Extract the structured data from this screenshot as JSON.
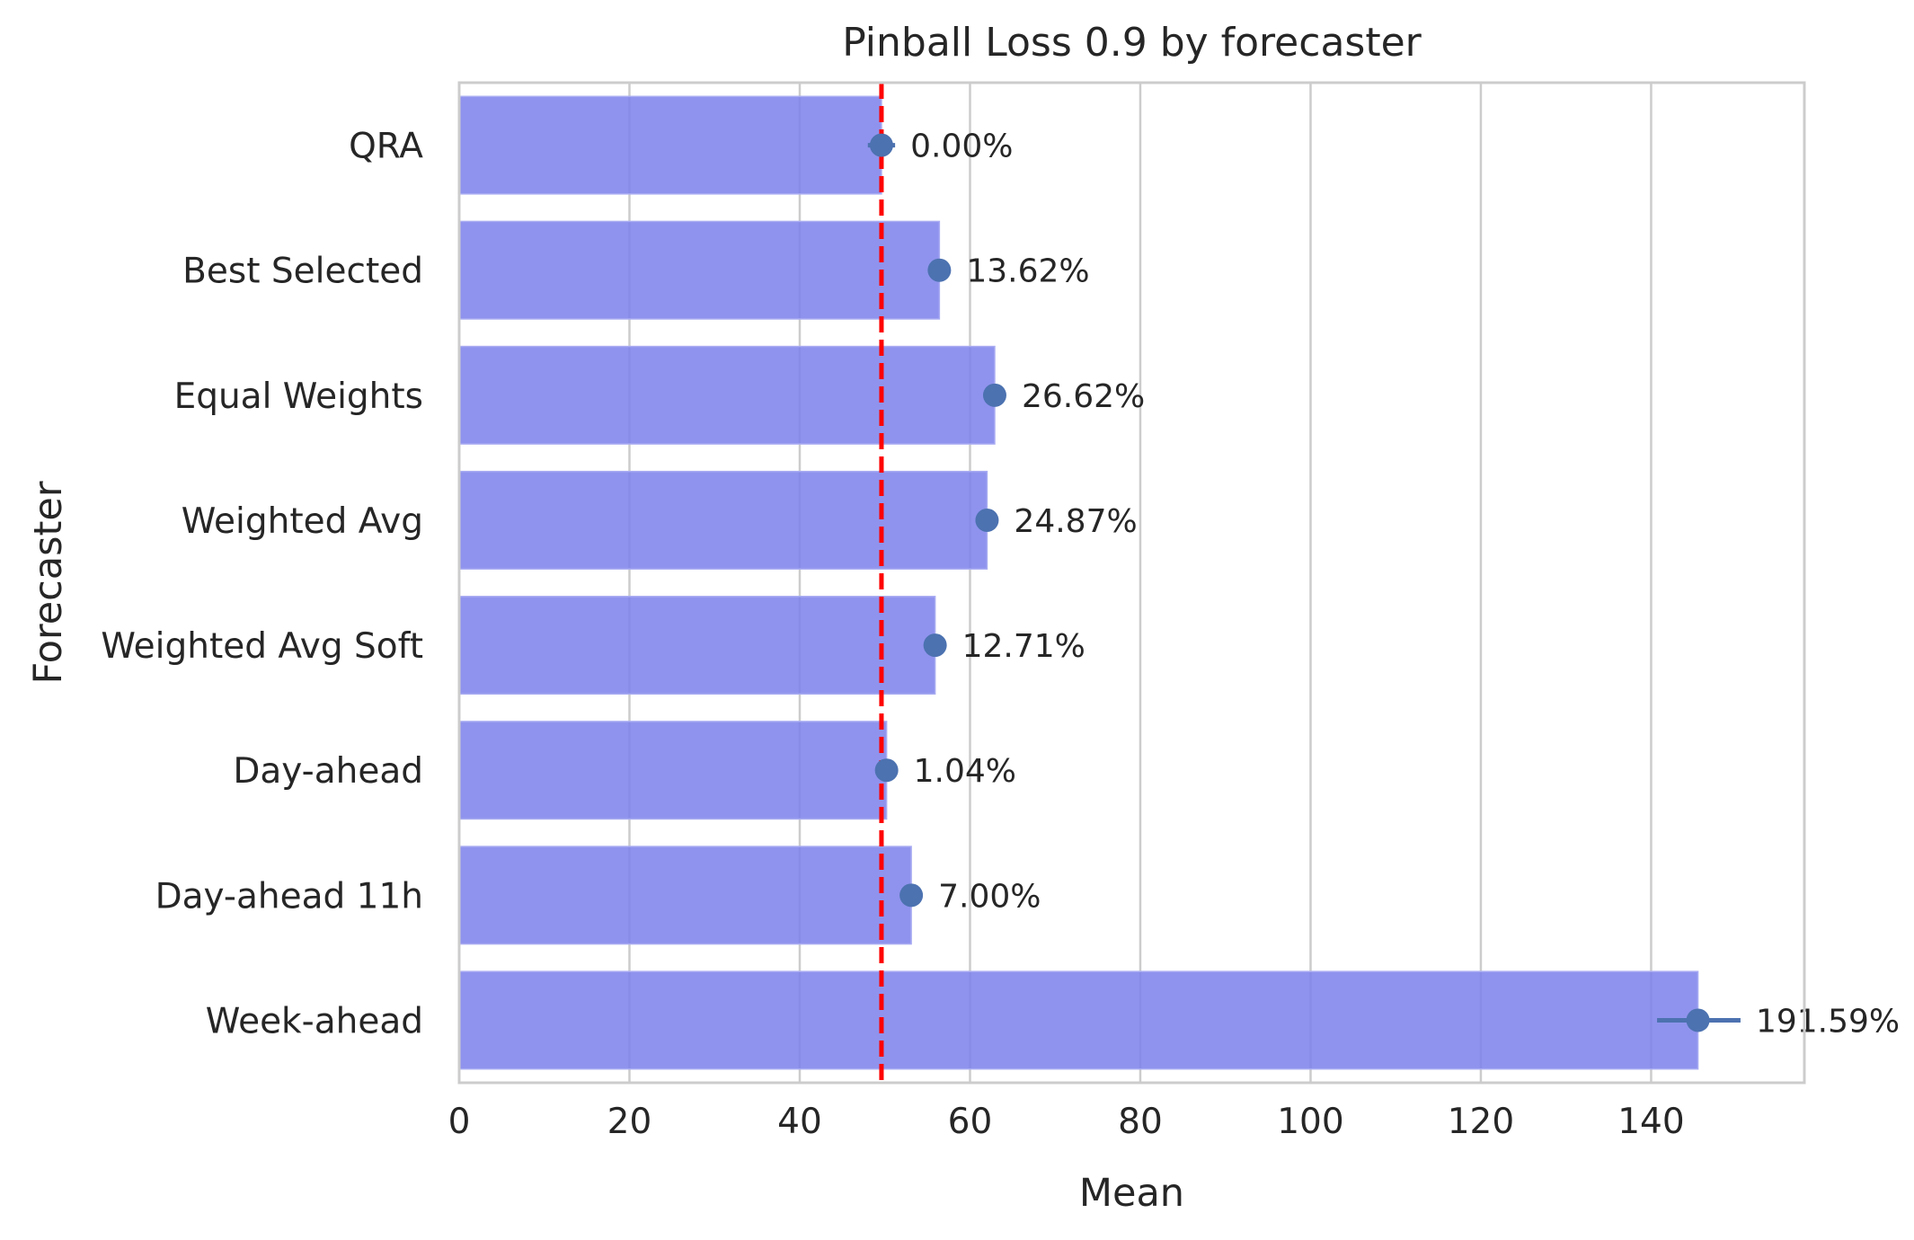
{
  "chart_data": {
    "type": "bar",
    "orientation": "horizontal",
    "title": "Pinball Loss 0.9 by forecaster",
    "xlabel": "Mean",
    "ylabel": "Forecaster",
    "xlim": [
      0,
      158
    ],
    "xticks": [
      0,
      20,
      40,
      60,
      80,
      100,
      120,
      140
    ],
    "grid": true,
    "categories": [
      "QRA",
      "Best Selected",
      "Equal Weights",
      "Weighted Avg",
      "Weighted Avg Soft",
      "Day-ahead",
      "Day-ahead 11h",
      "Week-ahead"
    ],
    "values": [
      49.6,
      56.4,
      62.9,
      62.0,
      55.9,
      50.2,
      53.1,
      145.5
    ],
    "points": [
      49.6,
      56.4,
      62.9,
      62.0,
      55.9,
      50.2,
      53.1,
      145.5
    ],
    "error_low": [
      48.0,
      56.4,
      62.9,
      62.0,
      55.9,
      50.2,
      53.1,
      140.7
    ],
    "error_high": [
      51.2,
      56.4,
      62.9,
      62.0,
      55.9,
      50.2,
      53.1,
      150.5
    ],
    "labels": [
      "0.00%",
      "13.62%",
      "26.62%",
      "24.87%",
      "12.71%",
      "1.04%",
      "7.00%",
      "191.59%"
    ],
    "reference_line": 49.6,
    "colors": {
      "bar": "#7b80ea",
      "point": "#4c72b0",
      "reference": "#ff0000",
      "grid": "#cccccc",
      "frame": "#cccccc"
    }
  }
}
